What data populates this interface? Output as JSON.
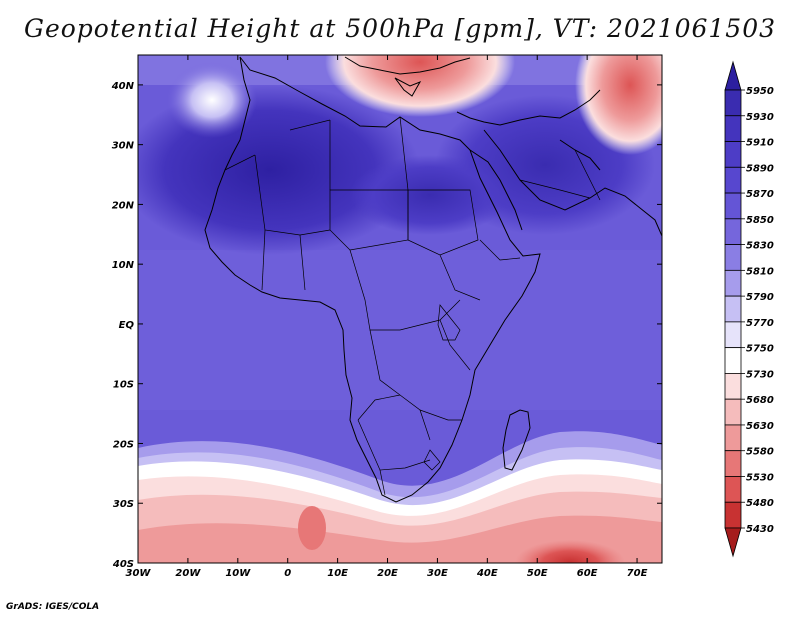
{
  "title": "Geopotential Height at 500hPa [gpm], VT: 2021061503",
  "credit": "GrADS: IGES/COLA",
  "map": {
    "lon_range": [
      -30,
      75
    ],
    "lat_range": [
      -40,
      45
    ],
    "lon_ticks": [
      {
        "v": -30,
        "label": "30W"
      },
      {
        "v": -20,
        "label": "20W"
      },
      {
        "v": -10,
        "label": "10W"
      },
      {
        "v": 0,
        "label": "0"
      },
      {
        "v": 10,
        "label": "10E"
      },
      {
        "v": 20,
        "label": "20E"
      },
      {
        "v": 30,
        "label": "30E"
      },
      {
        "v": 40,
        "label": "40E"
      },
      {
        "v": 50,
        "label": "50E"
      },
      {
        "v": 60,
        "label": "60E"
      },
      {
        "v": 70,
        "label": "70E"
      }
    ],
    "lat_ticks": [
      {
        "v": 40,
        "label": "40N"
      },
      {
        "v": 30,
        "label": "30N"
      },
      {
        "v": 20,
        "label": "20N"
      },
      {
        "v": 10,
        "label": "10N"
      },
      {
        "v": 0,
        "label": "EQ"
      },
      {
        "v": -10,
        "label": "10S"
      },
      {
        "v": -20,
        "label": "20S"
      },
      {
        "v": -30,
        "label": "30S"
      },
      {
        "v": -40,
        "label": "40S"
      }
    ]
  },
  "colorbar": {
    "levels": [
      "5950",
      "5930",
      "5910",
      "5890",
      "5870",
      "5850",
      "5830",
      "5810",
      "5790",
      "5770",
      "5750",
      "5730",
      "5680",
      "5630",
      "5580",
      "5530",
      "5480",
      "5430"
    ],
    "colors": [
      "#2c1fa0",
      "#3a2cb0",
      "#4434bd",
      "#4d3dc6",
      "#5747cf",
      "#6455d6",
      "#7566dc",
      "#8a7ee4",
      "#a69cec",
      "#c6c0f4",
      "#e6e3fa",
      "#ffffff",
      "#fbdede",
      "#f5bcbc",
      "#ee9a9a",
      "#e77777",
      "#dd5555",
      "#c83232",
      "#a51c1c"
    ]
  }
}
